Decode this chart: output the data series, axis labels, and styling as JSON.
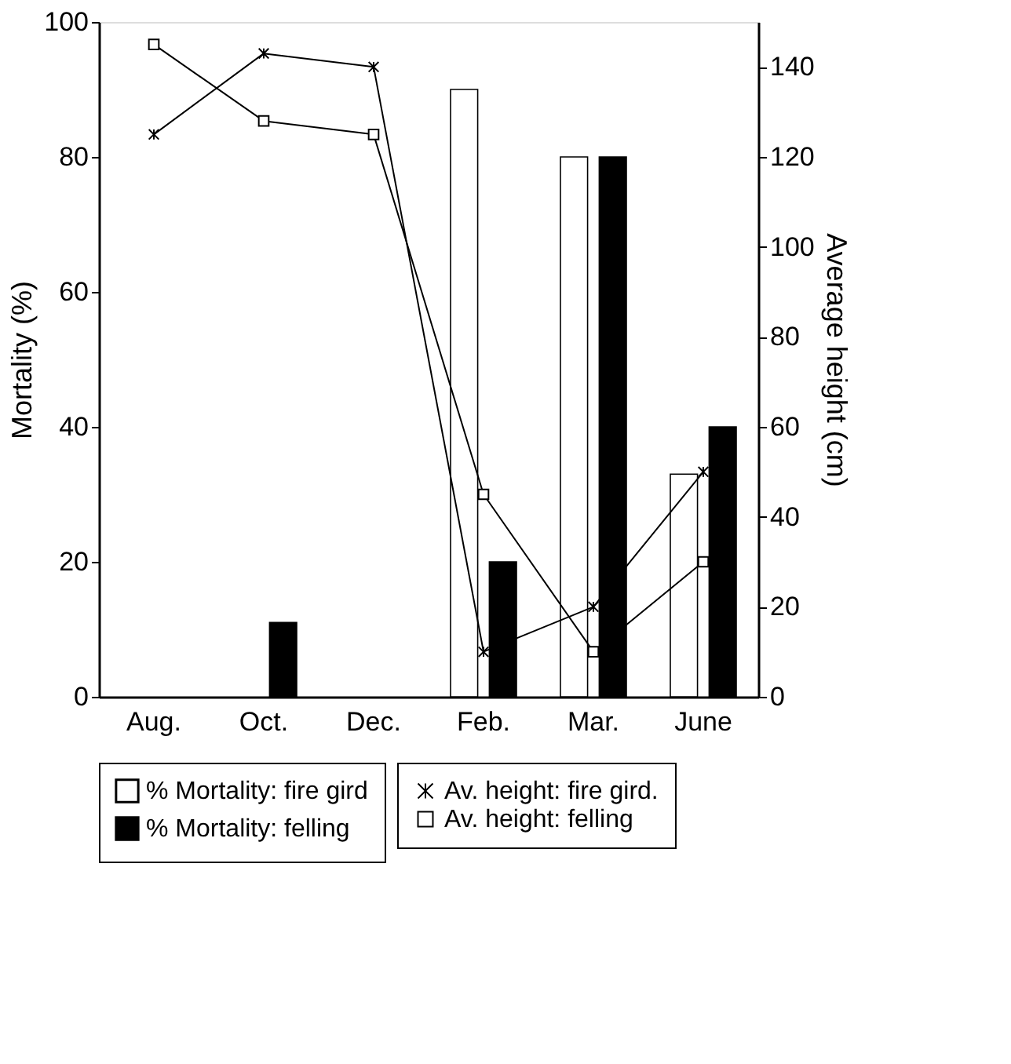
{
  "chart_data": {
    "type": "bar",
    "categories": [
      "Aug.",
      "Oct.",
      "Dec.",
      "Feb.",
      "Mar.",
      "June"
    ],
    "ylabel": "Mortality (%)",
    "y2label": "Average height (cm)",
    "ylim": [
      0,
      100
    ],
    "yticks": [
      0,
      20,
      40,
      60,
      80,
      100
    ],
    "y2lim": [
      0,
      150
    ],
    "y2ticks": [
      0,
      20,
      40,
      60,
      80,
      100,
      120,
      140
    ],
    "grid": false,
    "legend": "bottom",
    "series": [
      {
        "name": "% Mortality: fire gird",
        "color": "#ffffff",
        "values": [
          null,
          null,
          null,
          90,
          80,
          33
        ]
      },
      {
        "name": "% Mortality: felling",
        "color": "#000000",
        "values": [
          null,
          11,
          null,
          20,
          80,
          40
        ]
      },
      {
        "name": "Av. height: fire gird.",
        "type": "line",
        "axis": "y2",
        "color": "#000000",
        "marker": "cross",
        "values": [
          125,
          143,
          140,
          10,
          20,
          50
        ]
      },
      {
        "name": "Av. height: felling",
        "type": "line",
        "axis": "y2",
        "color": "#000000",
        "marker": "square",
        "values": [
          145,
          128,
          125,
          45,
          10,
          30
        ]
      }
    ]
  }
}
